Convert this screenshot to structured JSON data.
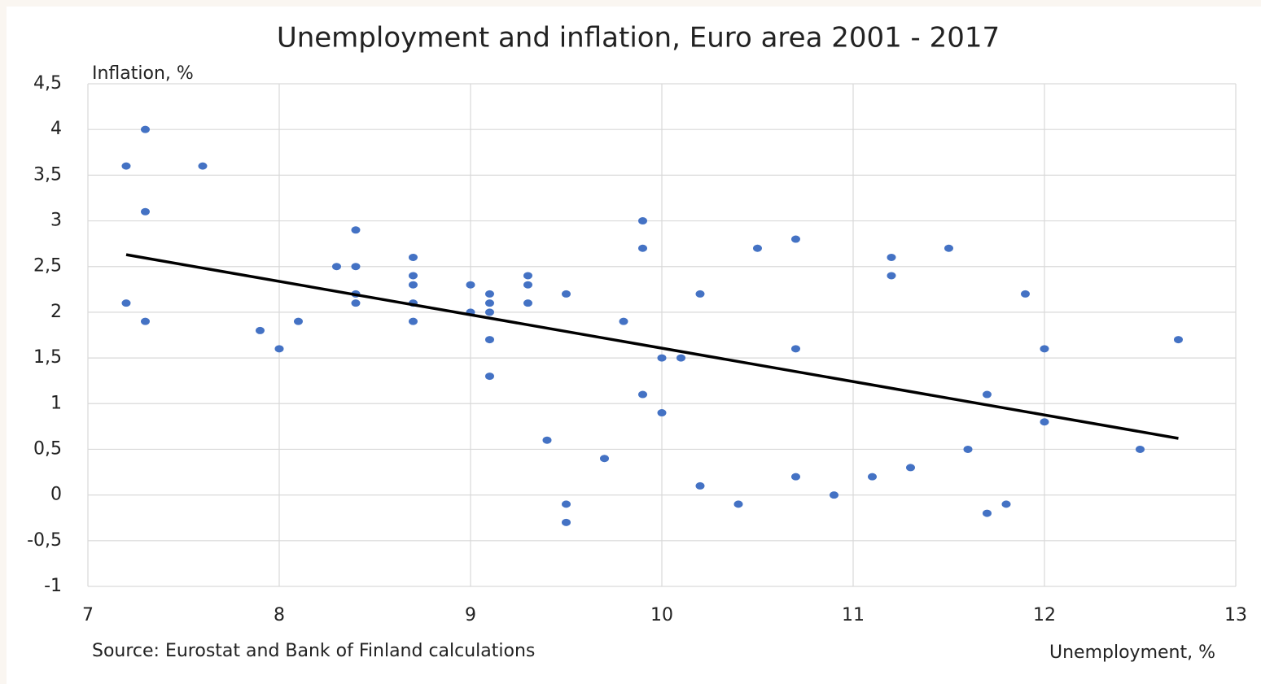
{
  "chart_data": {
    "type": "scatter",
    "title": "Unemployment and inflation, Euro area 2001 - 2017",
    "ylabel": "Inflation, %",
    "xlabel": "Unemployment, %",
    "source": "Source: Eurostat and Bank of Finland calculations",
    "xlim": [
      7,
      13
    ],
    "xticks": [
      7,
      8,
      9,
      10,
      11,
      12,
      13
    ],
    "ylim": [
      -1,
      4.5
    ],
    "yticks": [
      {
        "value": -1,
        "label": "-1"
      },
      {
        "value": -0.5,
        "label": "-0,5"
      },
      0,
      {
        "value": 0.5,
        "label": "0,5"
      },
      1,
      {
        "value": 1.5,
        "label": "1,5"
      },
      2,
      {
        "value": 2.5,
        "label": "2,5"
      },
      3,
      {
        "value": 3.5,
        "label": "3,5"
      },
      4,
      {
        "value": 4.5,
        "label": "4,5"
      }
    ],
    "grid": true,
    "series": [
      {
        "color": "#4472c4",
        "x": [
          7.2,
          7.3,
          7.6,
          7.3,
          7.2,
          7.3,
          7.9,
          8.0,
          8.1,
          8.3,
          8.4,
          8.4,
          8.4,
          8.4,
          8.7,
          8.7,
          8.7,
          8.7,
          8.7,
          9.0,
          9.0,
          9.1,
          9.1,
          9.1,
          9.1,
          9.1,
          9.3,
          9.3,
          9.3,
          9.4,
          9.5,
          9.5,
          9.5,
          9.7,
          9.8,
          9.9,
          9.9,
          9.9,
          10.0,
          10.0,
          10.1,
          10.2,
          10.2,
          10.4,
          10.5,
          10.7,
          10.7,
          10.7,
          10.9,
          11.1,
          11.2,
          11.2,
          11.3,
          11.5,
          11.6,
          11.7,
          11.7,
          11.8,
          11.9,
          12.0,
          12.0,
          12.5,
          12.7
        ],
        "values": [
          3.6,
          4.0,
          3.6,
          3.1,
          2.1,
          1.9,
          1.8,
          1.6,
          1.9,
          2.5,
          2.9,
          2.5,
          2.2,
          2.1,
          2.6,
          2.4,
          2.3,
          2.1,
          1.9,
          2.3,
          2.0,
          2.2,
          2.1,
          2.0,
          1.7,
          1.3,
          2.4,
          2.3,
          2.1,
          0.6,
          2.2,
          -0.1,
          -0.3,
          0.4,
          1.9,
          3.0,
          2.7,
          1.1,
          1.5,
          0.9,
          1.5,
          2.2,
          0.1,
          -0.1,
          2.7,
          2.8,
          1.6,
          0.2,
          0.0,
          0.2,
          2.6,
          2.4,
          0.3,
          2.7,
          0.5,
          1.1,
          -0.2,
          -0.1,
          2.2,
          1.6,
          0.8,
          0.5,
          1.7
        ]
      },
      {
        "type": "line",
        "color": "#000000",
        "x": [
          7.2,
          12.7
        ],
        "values": [
          2.63,
          0.62
        ]
      }
    ]
  }
}
